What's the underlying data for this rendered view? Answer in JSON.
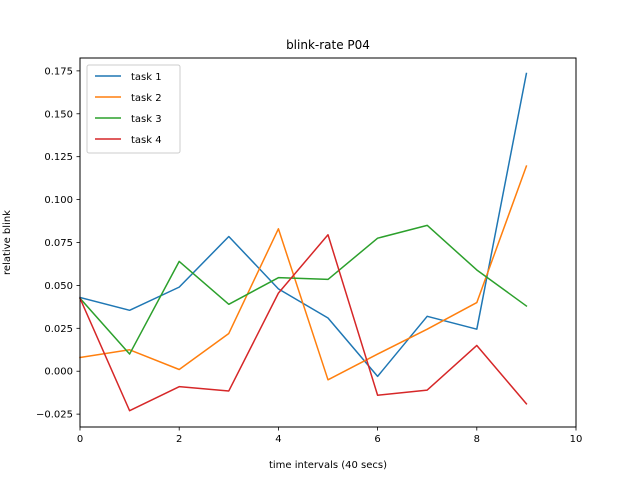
{
  "chart_data": {
    "type": "line",
    "title": "blink-rate P04",
    "xlabel": "time intervals (40 secs)",
    "ylabel": "relative blink",
    "xlim": [
      0,
      10
    ],
    "ylim": [
      -0.0325,
      0.1825
    ],
    "xticks": [
      0,
      2,
      4,
      6,
      8,
      10
    ],
    "yticks": [
      -0.025,
      0.0,
      0.025,
      0.05,
      0.075,
      0.1,
      0.125,
      0.15,
      0.175
    ],
    "ytick_labels": [
      "−0.025",
      "0.000",
      "0.025",
      "0.050",
      "0.075",
      "0.100",
      "0.125",
      "0.150",
      "0.175"
    ],
    "legend_position": "upper-left",
    "grid": false,
    "x": [
      0,
      1,
      2,
      3,
      4,
      5,
      6,
      7,
      8,
      9
    ],
    "series": [
      {
        "name": "task 1",
        "color": "#1f77b4",
        "values": [
          0.043,
          0.0355,
          0.049,
          0.0785,
          0.048,
          0.031,
          -0.003,
          0.032,
          0.0245,
          0.1735
        ]
      },
      {
        "name": "task 2",
        "color": "#ff7f0e",
        "values": [
          0.008,
          0.0125,
          0.001,
          0.022,
          0.083,
          -0.005,
          0.01,
          0.0245,
          0.04,
          0.1195
        ]
      },
      {
        "name": "task 3",
        "color": "#2ca02c",
        "values": [
          0.0425,
          0.01,
          0.064,
          0.039,
          0.0545,
          0.0535,
          0.0775,
          0.085,
          0.059,
          0.038
        ]
      },
      {
        "name": "task 4",
        "color": "#d62728",
        "values": [
          0.0425,
          -0.023,
          -0.009,
          -0.0115,
          0.0455,
          0.0795,
          -0.014,
          -0.011,
          0.015,
          -0.019
        ]
      }
    ]
  }
}
